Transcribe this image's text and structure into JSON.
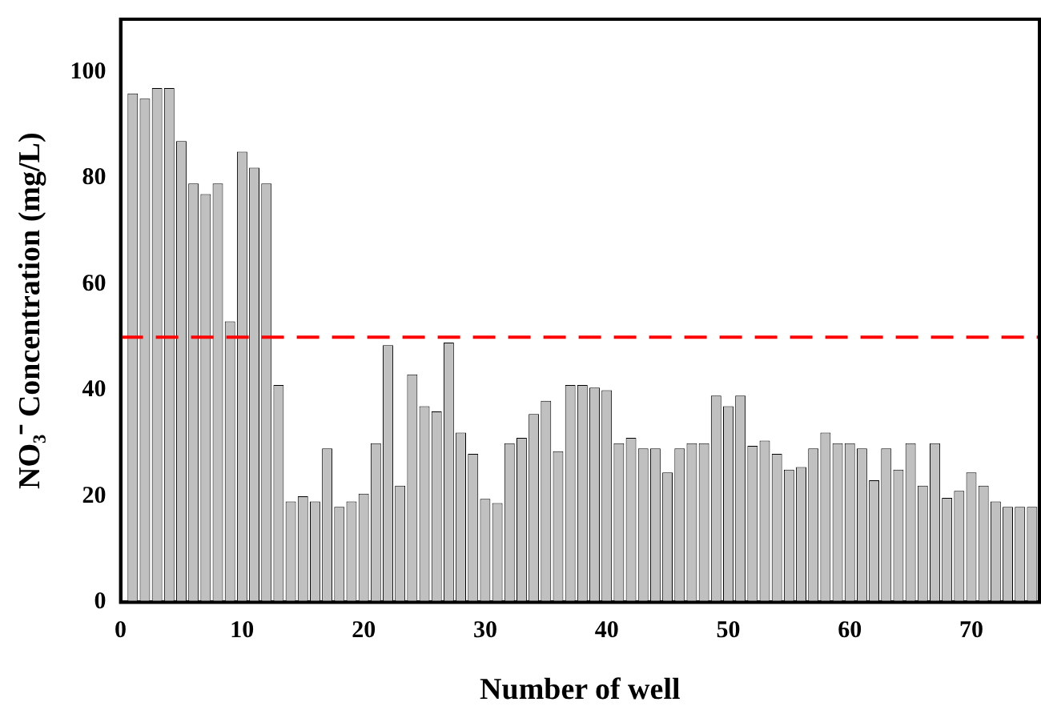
{
  "chart_data": {
    "type": "bar",
    "xlabel": "Number of well",
    "ylabel": "NO₃⁻ Concentration (mg/L)",
    "x": [
      1,
      2,
      3,
      4,
      5,
      6,
      7,
      8,
      9,
      10,
      11,
      12,
      13,
      14,
      15,
      16,
      17,
      18,
      19,
      20,
      21,
      22,
      23,
      24,
      25,
      26,
      27,
      28,
      29,
      30,
      31,
      32,
      33,
      34,
      35,
      36,
      37,
      38,
      39,
      40,
      41,
      42,
      43,
      44,
      45,
      46,
      47,
      48,
      49,
      50,
      51,
      52,
      53,
      54,
      55,
      56,
      57,
      58,
      59,
      60,
      61,
      62,
      63,
      64,
      65,
      66,
      67,
      68,
      69,
      70,
      71,
      72,
      73,
      74,
      75
    ],
    "values": [
      96,
      95,
      97,
      97,
      87,
      79,
      77,
      79,
      53,
      85,
      82,
      79,
      41,
      19,
      20,
      19,
      29,
      18,
      19,
      20.5,
      30,
      48.5,
      22,
      43,
      37,
      36,
      49,
      32,
      28,
      19.5,
      18.7,
      30,
      31,
      35.5,
      38,
      28.5,
      41,
      41,
      40.5,
      40,
      30,
      31,
      29,
      29,
      24.5,
      29,
      30,
      30,
      39,
      37,
      39,
      29.5,
      30.5,
      28,
      25,
      25.5,
      29,
      32,
      30,
      30,
      29,
      23,
      29,
      25,
      30,
      22,
      30,
      19.7,
      21,
      24.5,
      22,
      19,
      18,
      18,
      18
    ],
    "color": "#c0c0c0",
    "xlim": [
      0,
      75.6
    ],
    "xticks": [
      0,
      10,
      20,
      30,
      40,
      50,
      60,
      70
    ],
    "ylim": [
      0,
      110
    ],
    "yticks": [
      0,
      20,
      40,
      60,
      80,
      100
    ],
    "ref_lines": [
      {
        "axis": "y",
        "value": 50,
        "color": "#ff0000",
        "line_style": "dashed"
      }
    ],
    "grid": false
  }
}
